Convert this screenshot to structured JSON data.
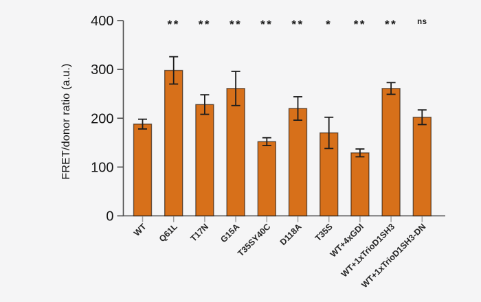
{
  "figure": {
    "background_color": "#f5f5f6"
  },
  "chart_data": {
    "type": "bar",
    "title": "",
    "xlabel": "",
    "ylabel": "FRET/donor ratio (a.u.)",
    "ylim": [
      0,
      400
    ],
    "yticks": [
      0,
      100,
      200,
      300,
      400
    ],
    "grid": false,
    "legend": "none",
    "categories": [
      "WT",
      "Q61L",
      "T17N",
      "G15A",
      "T35SY40C",
      "D118A",
      "T35S",
      "WT+4xGDI",
      "WT+1xTrioD1SH3",
      "WT+1xTrioD1SH3-DN"
    ],
    "values": [
      188,
      298,
      228,
      261,
      152,
      220,
      170,
      129,
      261,
      202
    ],
    "errors": [
      10,
      28,
      20,
      35,
      8,
      24,
      32,
      8,
      12,
      15
    ],
    "significance": [
      "",
      "**",
      "**",
      "**",
      "**",
      "**",
      "*",
      "**",
      "**",
      "ns"
    ],
    "bar_color": "#d7701a",
    "bar_edge_color": "#0000008c",
    "error_bar_color": "#1c1c1c",
    "axis_color": "#4c4c4c",
    "x_tick_color": "#9e9e9e",
    "y_tick_label_color": "#141414",
    "x_tick_label_color": "#262626",
    "significance_color": "#1a1a1a"
  }
}
